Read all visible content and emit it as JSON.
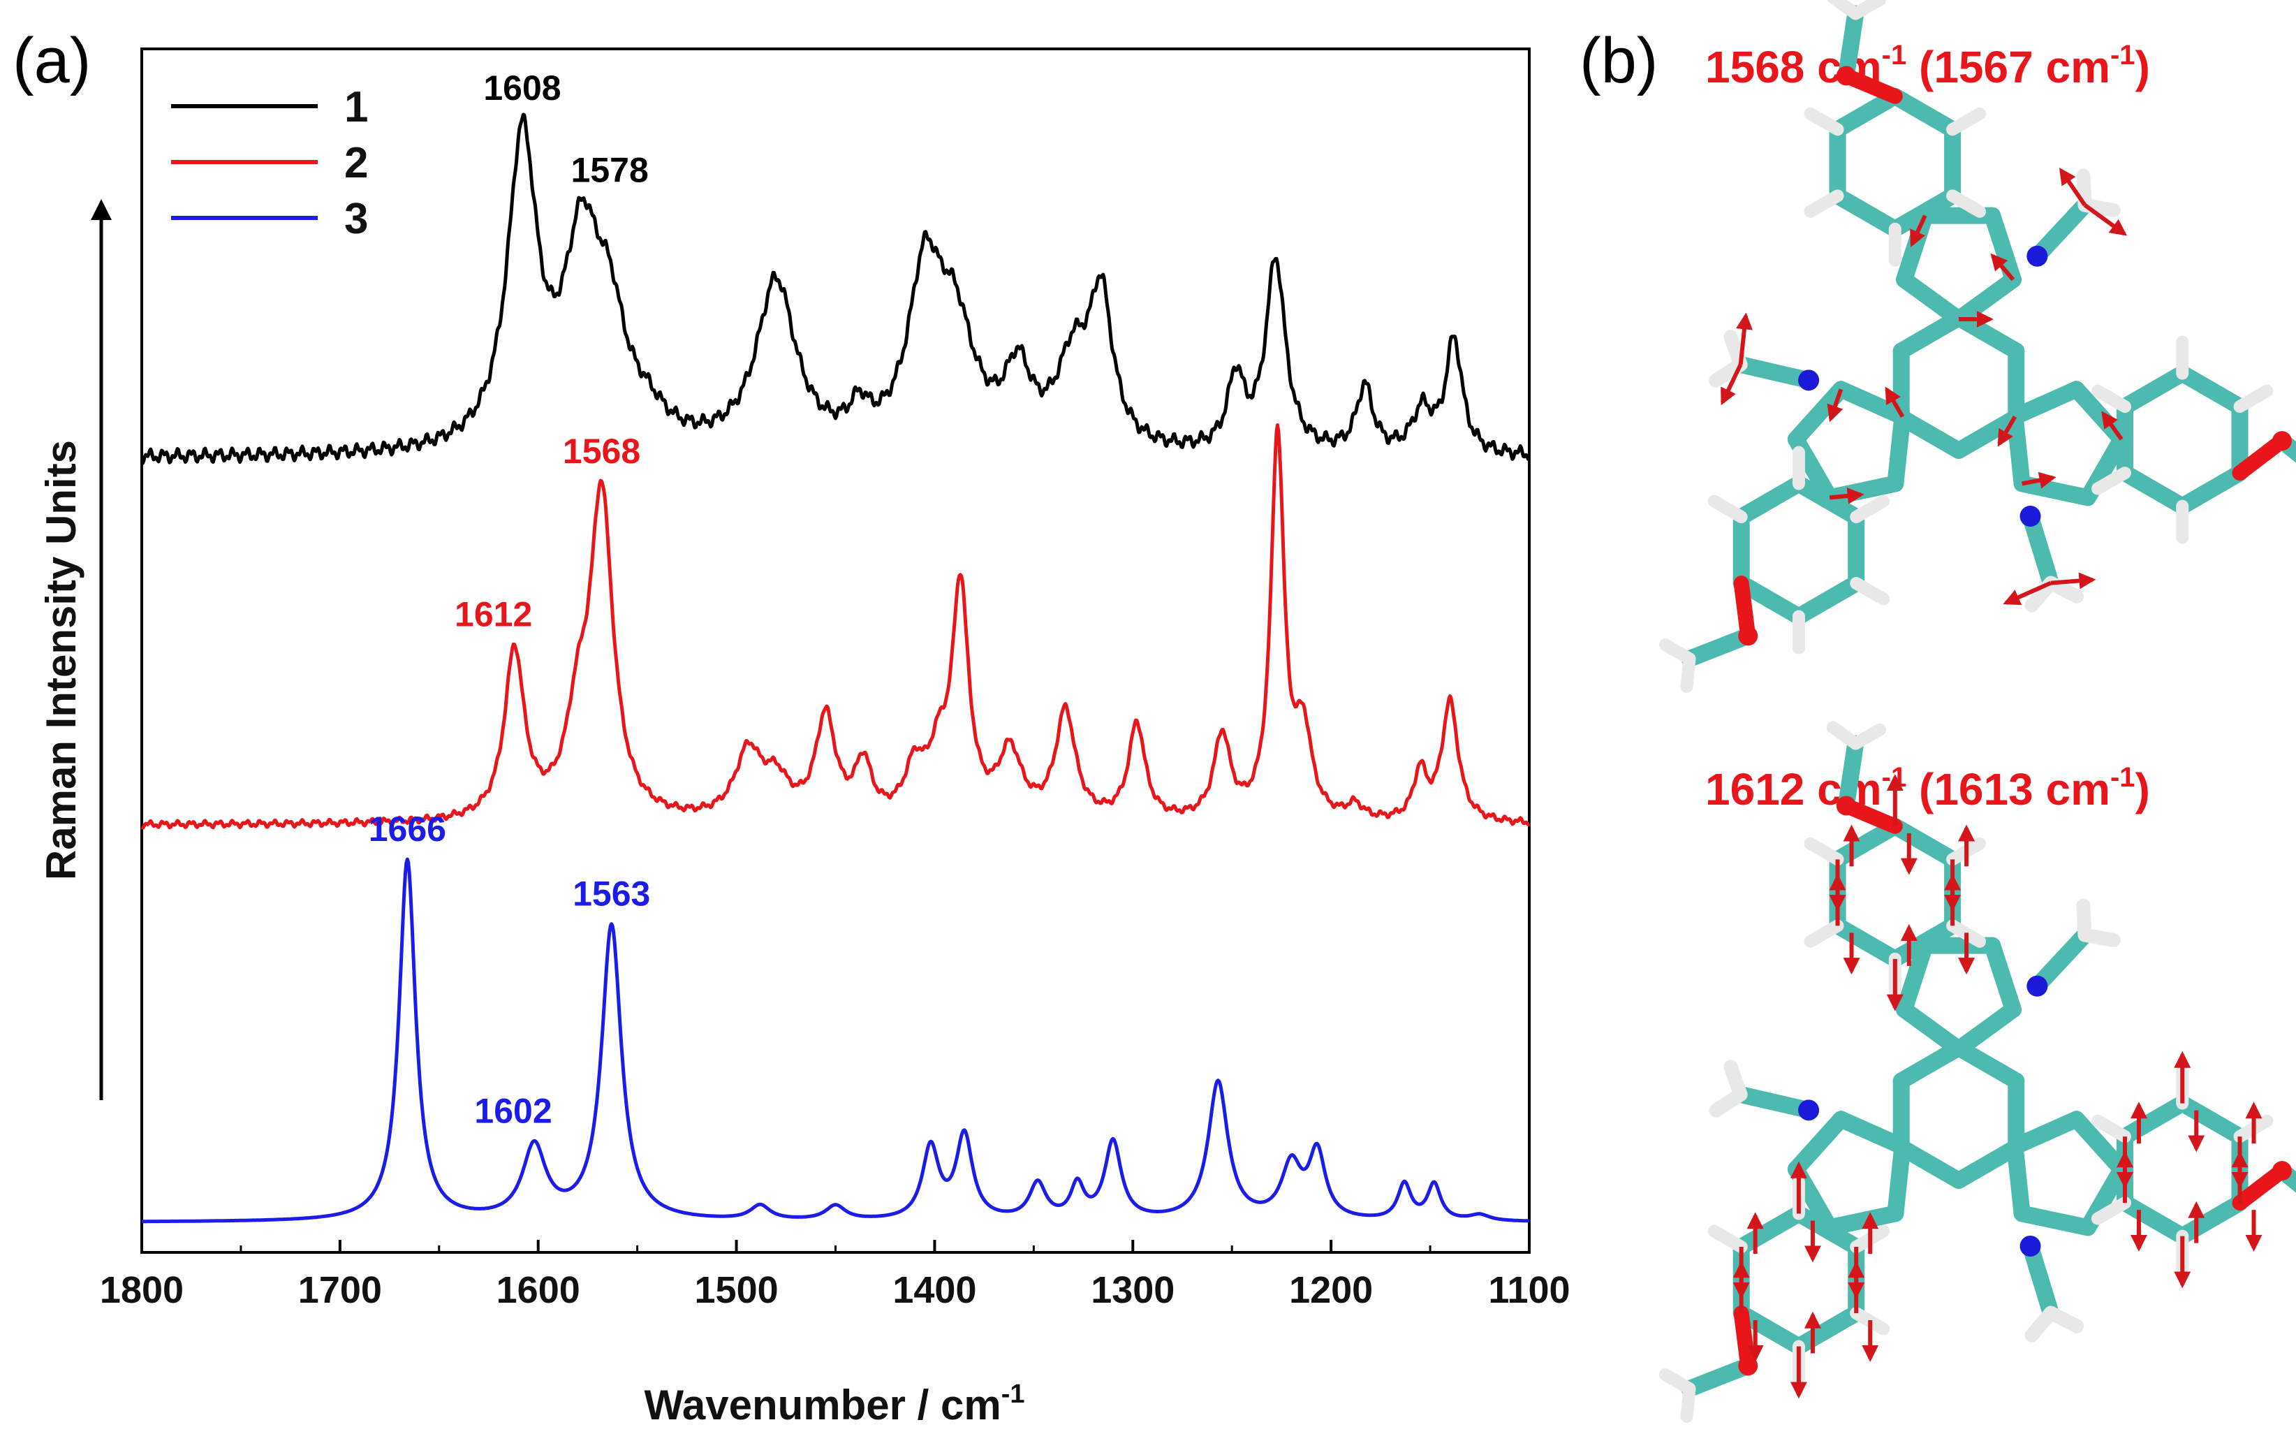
{
  "panel_a_label": "(a)",
  "panel_b_label": "(b)",
  "chart_data": {
    "type": "line",
    "title": "",
    "xlabel": "Wavenumber / cm",
    "xlabel_sup": "-1",
    "ylabel": "Raman Intensity Units",
    "xlim": [
      1800,
      1100
    ],
    "ylim": [
      0,
      10
    ],
    "x_ticks": [
      1800,
      1700,
      1600,
      1500,
      1400,
      1300,
      1200,
      1100
    ],
    "legend_position": "top-left",
    "series": [
      {
        "name": "1",
        "color": "#000000",
        "baseline": 6.6,
        "baseline_slope": 0.0,
        "noise": 0.06,
        "peaks": [
          {
            "x": 1608,
            "h": 2.55,
            "w": 9
          },
          {
            "x": 1578,
            "h": 1.6,
            "w": 11
          },
          {
            "x": 1564,
            "h": 0.85,
            "w": 10
          },
          {
            "x": 1545,
            "h": 0.2,
            "w": 12
          },
          {
            "x": 1480,
            "h": 1.4,
            "w": 12
          },
          {
            "x": 1438,
            "h": 0.25,
            "w": 6
          },
          {
            "x": 1405,
            "h": 1.35,
            "w": 10
          },
          {
            "x": 1390,
            "h": 0.95,
            "w": 12
          },
          {
            "x": 1358,
            "h": 0.6,
            "w": 8
          },
          {
            "x": 1330,
            "h": 0.7,
            "w": 10
          },
          {
            "x": 1316,
            "h": 1.2,
            "w": 7
          },
          {
            "x": 1248,
            "h": 0.6,
            "w": 5
          },
          {
            "x": 1228,
            "h": 1.6,
            "w": 6
          },
          {
            "x": 1183,
            "h": 0.55,
            "w": 5
          },
          {
            "x": 1154,
            "h": 0.35,
            "w": 6
          },
          {
            "x": 1138,
            "h": 0.95,
            "w": 5
          }
        ],
        "peak_labels": [
          {
            "x": 1608,
            "text": "1608"
          },
          {
            "x": 1578,
            "text": "1578"
          }
        ]
      },
      {
        "name": "2",
        "color": "#e8161b",
        "baseline": 3.55,
        "baseline_slope": 0.0,
        "noise": 0.03,
        "peaks": [
          {
            "x": 1612,
            "h": 1.4,
            "w": 6
          },
          {
            "x": 1580,
            "h": 0.7,
            "w": 7
          },
          {
            "x": 1568,
            "h": 2.65,
            "w": 7
          },
          {
            "x": 1494,
            "h": 0.55,
            "w": 8
          },
          {
            "x": 1480,
            "h": 0.3,
            "w": 8
          },
          {
            "x": 1455,
            "h": 0.85,
            "w": 6
          },
          {
            "x": 1436,
            "h": 0.45,
            "w": 5
          },
          {
            "x": 1410,
            "h": 0.4,
            "w": 6
          },
          {
            "x": 1387,
            "h": 1.9,
            "w": 5
          },
          {
            "x": 1398,
            "h": 0.45,
            "w": 6
          },
          {
            "x": 1362,
            "h": 0.55,
            "w": 7
          },
          {
            "x": 1334,
            "h": 0.9,
            "w": 6
          },
          {
            "x": 1298,
            "h": 0.8,
            "w": 5
          },
          {
            "x": 1255,
            "h": 0.7,
            "w": 5
          },
          {
            "x": 1227,
            "h": 3.2,
            "w": 4
          },
          {
            "x": 1214,
            "h": 0.7,
            "w": 5
          },
          {
            "x": 1188,
            "h": 0.12,
            "w": 5
          },
          {
            "x": 1155,
            "h": 0.4,
            "w": 4
          },
          {
            "x": 1140,
            "h": 1.0,
            "w": 5
          }
        ],
        "peak_labels": [
          {
            "x": 1612,
            "text": "1612"
          },
          {
            "x": 1568,
            "text": "1568"
          }
        ]
      },
      {
        "name": "3",
        "color": "#1c1ce8",
        "baseline": 0.25,
        "baseline_slope": 0.0,
        "noise": 0.0,
        "peaks": [
          {
            "x": 1666,
            "h": 3.0,
            "w": 5
          },
          {
            "x": 1602,
            "h": 0.6,
            "w": 7
          },
          {
            "x": 1563,
            "h": 2.45,
            "w": 6
          },
          {
            "x": 1488,
            "h": 0.12,
            "w": 6
          },
          {
            "x": 1450,
            "h": 0.12,
            "w": 6
          },
          {
            "x": 1402,
            "h": 0.6,
            "w": 5
          },
          {
            "x": 1385,
            "h": 0.7,
            "w": 5
          },
          {
            "x": 1348,
            "h": 0.3,
            "w": 5
          },
          {
            "x": 1328,
            "h": 0.28,
            "w": 4
          },
          {
            "x": 1310,
            "h": 0.65,
            "w": 5
          },
          {
            "x": 1257,
            "h": 1.15,
            "w": 6
          },
          {
            "x": 1220,
            "h": 0.45,
            "w": 6
          },
          {
            "x": 1207,
            "h": 0.55,
            "w": 5
          },
          {
            "x": 1163,
            "h": 0.3,
            "w": 4
          },
          {
            "x": 1148,
            "h": 0.3,
            "w": 4
          },
          {
            "x": 1125,
            "h": 0.05,
            "w": 6
          }
        ],
        "peak_labels": [
          {
            "x": 1666,
            "text": "1666"
          },
          {
            "x": 1602,
            "text": "1602"
          },
          {
            "x": 1563,
            "text": "1563"
          }
        ]
      }
    ]
  },
  "panel_b": {
    "modes": [
      {
        "value": "1568 cm",
        "sup": "-1",
        "calc": " (1567 cm",
        "calc_sup": "-1",
        "close": ")"
      },
      {
        "value": "1612 cm",
        "sup": "-1",
        "calc": " (1613 cm",
        "calc_sup": "-1",
        "close": ")"
      }
    ],
    "colors": {
      "carbon": "#4dbab0",
      "carbon_dark": "#2a8a82",
      "nitrogen": "#1a1ad8",
      "oxygen": "#e8161b",
      "hydrogen": "#e8e8e8",
      "arrow": "#d4161b"
    }
  }
}
